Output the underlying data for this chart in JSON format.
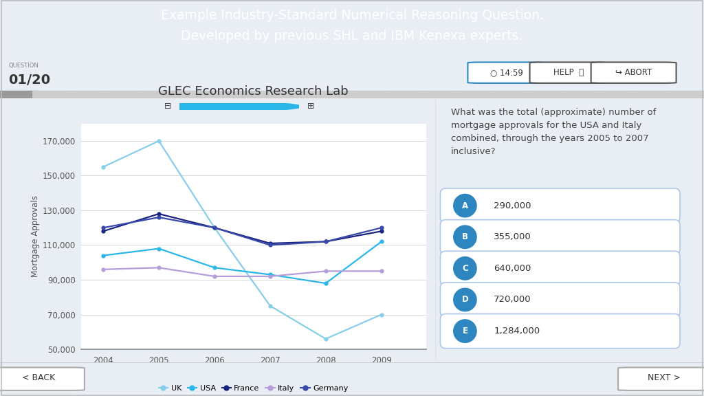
{
  "title": "GLEC Economics Research Lab",
  "header_text": "Example Industry-Standard Numerical Reasoning Question.\nDeveloped by previous SHL and IBM Kenexa experts.",
  "header_bg": "#29b6e8",
  "header_text_color": "#ffffff",
  "outer_bg": "#e8eef4",
  "inner_bg": "#f0f5fa",
  "chart_bg": "#ffffff",
  "right_bg": "#ffffff",
  "question_text": "What was the total (approximate) number of\nmortgage approvals for the USA and Italy\ncombined, through the years 2005 to 2007\ninclusive?",
  "question_label": "QUESTION",
  "question_num": "01/20",
  "timer": "14:59",
  "years": [
    2004,
    2005,
    2006,
    2007,
    2008,
    2009
  ],
  "uk_data": [
    155000,
    170000,
    120000,
    75000,
    56000,
    70000
  ],
  "usa_data": [
    104000,
    108000,
    97000,
    93000,
    88000,
    112000
  ],
  "france_data": [
    118000,
    128000,
    120000,
    111000,
    112000,
    118000
  ],
  "italy_data": [
    96000,
    97000,
    92000,
    92000,
    95000,
    95000
  ],
  "germany_data": [
    120000,
    126000,
    120000,
    110000,
    112000,
    120000
  ],
  "uk_color": "#87ceeb",
  "usa_color": "#29b6e8",
  "france_color": "#1a237e",
  "italy_color": "#b39ddb",
  "germany_color": "#3949ab",
  "ylabel": "Mortgage Approvals",
  "ylim": [
    50000,
    180000
  ],
  "yticks": [
    50000,
    70000,
    90000,
    110000,
    130000,
    150000,
    170000
  ],
  "answers": [
    "A",
    "B",
    "C",
    "D",
    "E"
  ],
  "answer_values": [
    "290,000",
    "355,000",
    "640,000",
    "720,000",
    "1,284,000"
  ],
  "answer_circle_color": "#2e86c1",
  "answer_border_color": "#adc8e8",
  "answer_bg": "#ffffff",
  "back_btn_text": "< BACK",
  "next_btn_text": "NEXT >",
  "progress_filled": "#999999",
  "progress_empty": "#cccccc",
  "subheader_bg": "#eef2f7",
  "footer_bg": "#eef2f7"
}
